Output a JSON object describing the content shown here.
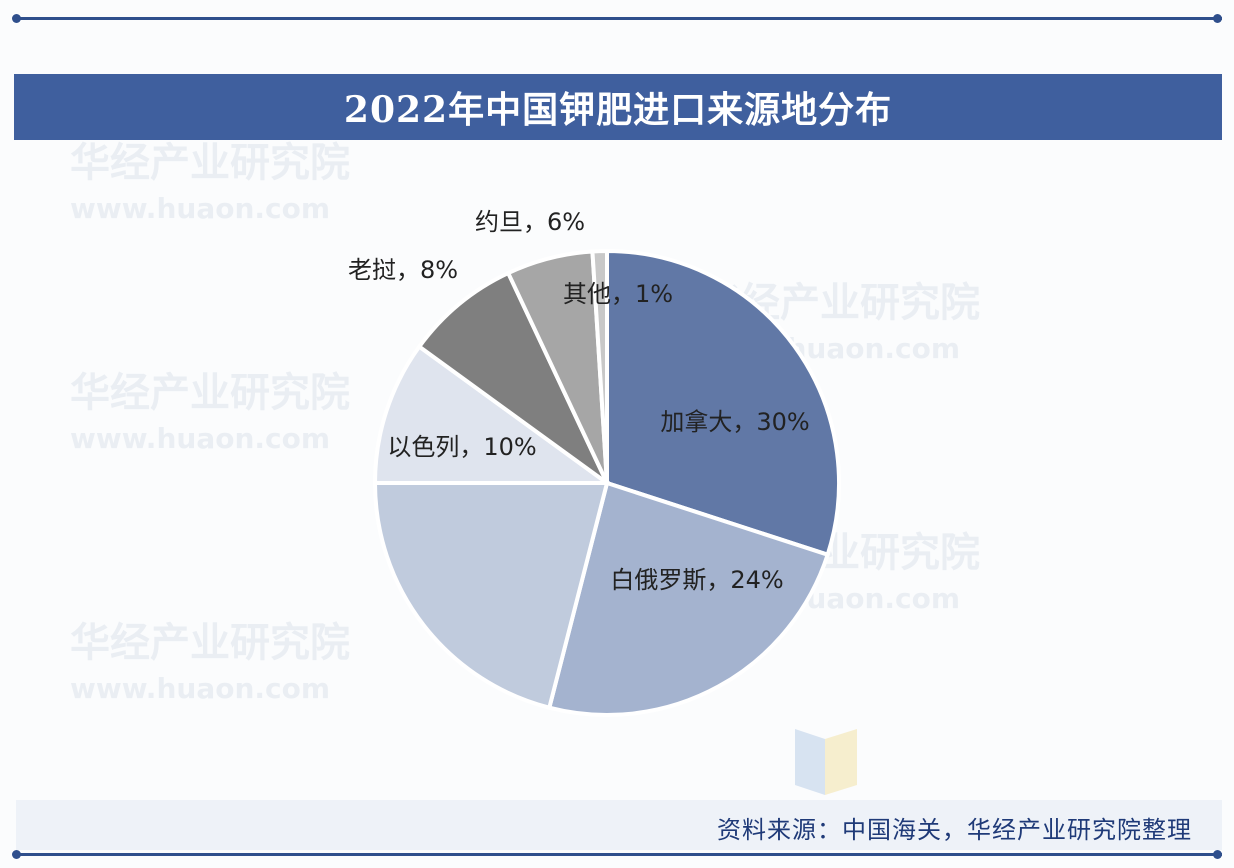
{
  "title": "2022年中国钾肥进口来源地分布",
  "source": "资料来源：中国海关，华经产业研究院整理",
  "watermark": {
    "brand": "华经产业研究院",
    "url": "www.huaon.com"
  },
  "colors": {
    "title_bar": "#3f5f9e",
    "frame": "#2f4f8c",
    "source_text": "#1f3a78"
  },
  "chart_data": {
    "type": "pie",
    "title": "2022年中国钾肥进口来源地分布",
    "slices": [
      {
        "label": "加拿大",
        "value": 30,
        "display": "加拿大，30%",
        "color": "#6178a6"
      },
      {
        "label": "白俄罗斯",
        "value": 24,
        "display": "白俄罗斯，24%",
        "color": "#a4b3cf"
      },
      {
        "label": "",
        "value": 21,
        "display": "",
        "color": "#c0cbdd"
      },
      {
        "label": "以色列",
        "value": 10,
        "display": "以色列，10%",
        "color": "#dfe4ee"
      },
      {
        "label": "老挝",
        "value": 8,
        "display": "老挝，8%",
        "color": "#7f7f7f"
      },
      {
        "label": "约旦",
        "value": 6,
        "display": "约旦，6%",
        "color": "#a6a6a6"
      },
      {
        "label": "其他",
        "value": 1,
        "display": "其他，1%",
        "color": "#c8c8c8"
      }
    ]
  }
}
